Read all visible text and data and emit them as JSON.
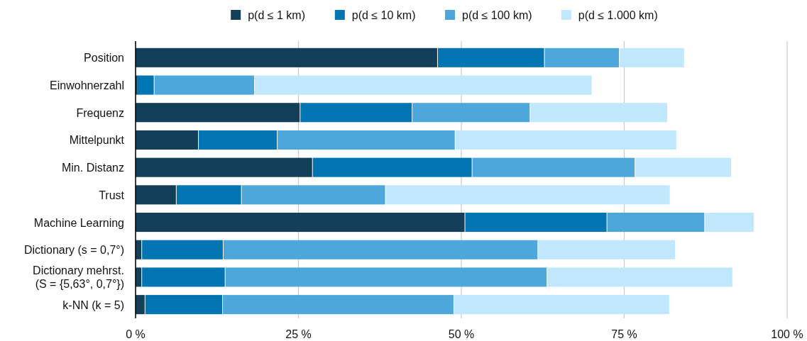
{
  "chart_data": {
    "type": "bar",
    "orientation": "horizontal",
    "stacked": true,
    "categories": [
      "Position",
      "Einwohnerzahl",
      "Frequenz",
      "Mittelpunkt",
      "Min. Distanz",
      "Trust",
      "Machine Learning",
      "Dictionary (s = 0,7°)",
      "Dictionary mehrst.\n(S = {5,63°, 0,7°})",
      "k-NN (k = 5)"
    ],
    "series": [
      {
        "name": "p(d ≤ 1 km)",
        "color": "#143f59",
        "values": [
          46.4,
          0.3,
          25.3,
          9.7,
          27.2,
          6.3,
          50.6,
          1.0,
          1.0,
          1.5
        ]
      },
      {
        "name": "p(d ≤ 10 km)",
        "color": "#0275b2",
        "values": [
          16.4,
          2.6,
          17.2,
          12.1,
          24.5,
          10.0,
          21.8,
          12.5,
          12.8,
          11.9
        ]
      },
      {
        "name": "p(d ≤ 100 km)",
        "color": "#4ea7da",
        "values": [
          11.5,
          15.4,
          18.1,
          27.3,
          25.0,
          22.1,
          15.0,
          48.3,
          49.4,
          35.5
        ]
      },
      {
        "name": "p(d ≤ 1.000 km)",
        "color": "#c0e7fc",
        "values": [
          10.0,
          51.8,
          21.1,
          34.0,
          14.8,
          43.7,
          7.6,
          21.1,
          28.5,
          33.1
        ]
      }
    ],
    "xlim": [
      0,
      100
    ],
    "xticks": [
      {
        "value": 0,
        "label": "0 %"
      },
      {
        "value": 25,
        "label": "25 %"
      },
      {
        "value": 50,
        "label": "50 %"
      },
      {
        "value": 75,
        "label": "75 %"
      },
      {
        "value": 100,
        "label": "100 %"
      }
    ],
    "grid": "x",
    "legend": "top"
  }
}
